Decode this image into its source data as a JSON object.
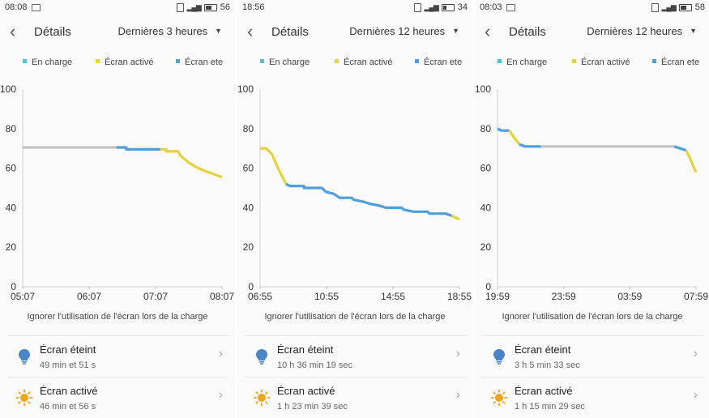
{
  "colors": {
    "charging": "#4cc4d6",
    "screen_on": "#e6d23e",
    "screen_off": "#4f9fdc",
    "plugged_line": "#c4c4c4",
    "bulb": "#4a86c5",
    "sun": "#f0a41f"
  },
  "icons": {
    "back": "chevron-left",
    "dropdown": "triangle-down",
    "screen_off": "lightbulb",
    "screen_on": "sun",
    "row_arrow": "chevron-right"
  },
  "panels": [
    {
      "status": {
        "time": "08:08",
        "battery": "56"
      },
      "header": {
        "title": "Détails",
        "range": "Dernières 3 heures"
      },
      "legend": [
        "En charge",
        "Écran activé",
        "Écran ete"
      ],
      "chart_data": {
        "type": "line",
        "ylim": [
          0,
          100
        ],
        "y_ticks": [
          "0",
          "20",
          "40",
          "60",
          "80",
          "100"
        ],
        "x_ticks": [
          "05:07",
          "06:07",
          "07:07",
          "08:07"
        ],
        "segments": [
          {
            "state": "charging",
            "points": [
              [
                0,
                70.5
              ],
              [
                0.47,
                70.5
              ]
            ]
          },
          {
            "state": "screen_off",
            "points": [
              [
                0.47,
                70.5
              ],
              [
                0.52,
                70.5
              ],
              [
                0.52,
                69.5
              ],
              [
                0.69,
                69.5
              ]
            ]
          },
          {
            "state": "screen_on",
            "points": [
              [
                0.69,
                69.5
              ],
              [
                0.72,
                69.5
              ],
              [
                0.72,
                68.5
              ],
              [
                0.78,
                68.5
              ],
              [
                0.79,
                66.5
              ],
              [
                0.83,
                63
              ],
              [
                0.88,
                60
              ],
              [
                0.93,
                58
              ],
              [
                1.0,
                55.5
              ]
            ]
          }
        ]
      },
      "ignore_text": "Ignorer l'utilisation de l'écran lors de la charge",
      "rows": [
        {
          "title": "Écran éteint",
          "value": "49 min et 51 s"
        },
        {
          "title": "Écran activé",
          "value": "46 min et 56 s"
        }
      ]
    },
    {
      "status": {
        "time": "18:56",
        "battery": "34"
      },
      "header": {
        "title": "Détails",
        "range": "Dernières 12 heures"
      },
      "legend": [
        "En charge",
        "Écran activé",
        "Écran ete"
      ],
      "chart_data": {
        "type": "line",
        "ylim": [
          0,
          100
        ],
        "y_ticks": [
          "0",
          "20",
          "40",
          "60",
          "80",
          "100"
        ],
        "x_ticks": [
          "06:55",
          "10:55",
          "14:55",
          "18:55"
        ],
        "segments": [
          {
            "state": "screen_on",
            "points": [
              [
                0,
                70
              ],
              [
                0.03,
                70
              ],
              [
                0.06,
                67
              ],
              [
                0.09,
                60
              ],
              [
                0.12,
                54
              ],
              [
                0.13,
                52
              ]
            ]
          },
          {
            "state": "screen_off",
            "points": [
              [
                0.13,
                52
              ],
              [
                0.15,
                51
              ],
              [
                0.22,
                51
              ],
              [
                0.22,
                50
              ],
              [
                0.31,
                50
              ],
              [
                0.33,
                48
              ],
              [
                0.37,
                47
              ],
              [
                0.4,
                45
              ],
              [
                0.46,
                45
              ],
              [
                0.47,
                44
              ],
              [
                0.52,
                43
              ],
              [
                0.55,
                42
              ],
              [
                0.6,
                41
              ],
              [
                0.63,
                40
              ],
              [
                0.71,
                40
              ],
              [
                0.72,
                39
              ],
              [
                0.77,
                38
              ],
              [
                0.84,
                38
              ],
              [
                0.85,
                37
              ],
              [
                0.93,
                37
              ],
              [
                0.96,
                36
              ]
            ]
          },
          {
            "state": "screen_on",
            "points": [
              [
                0.96,
                36
              ],
              [
                0.98,
                35
              ],
              [
                1.0,
                34
              ]
            ]
          }
        ]
      },
      "ignore_text": "Ignorer l'utilisation de l'écran lors de la charge",
      "rows": [
        {
          "title": "Écran éteint",
          "value": "10 h 36 min 19 sec"
        },
        {
          "title": "Écran activé",
          "value": "1 h 23 min 39 sec"
        }
      ]
    },
    {
      "status": {
        "time": "08:03",
        "battery": "58"
      },
      "header": {
        "title": "Détails",
        "range": "Dernières 12 heures"
      },
      "legend": [
        "En charge",
        "Écran activé",
        "Écran ete"
      ],
      "chart_data": {
        "type": "line",
        "ylim": [
          0,
          100
        ],
        "y_ticks": [
          "0",
          "20",
          "40",
          "60",
          "80",
          "100"
        ],
        "x_ticks": [
          "19:59",
          "23:59",
          "03:59",
          "07:59"
        ],
        "segments": [
          {
            "state": "screen_off",
            "points": [
              [
                0,
                80
              ],
              [
                0.02,
                79
              ],
              [
                0.06,
                79
              ]
            ]
          },
          {
            "state": "screen_on",
            "points": [
              [
                0.06,
                79
              ],
              [
                0.08,
                76
              ],
              [
                0.11,
                72
              ]
            ]
          },
          {
            "state": "screen_off",
            "points": [
              [
                0.11,
                72
              ],
              [
                0.14,
                71
              ],
              [
                0.22,
                71
              ]
            ]
          },
          {
            "state": "charging",
            "points": [
              [
                0.22,
                71
              ],
              [
                0.89,
                71
              ]
            ]
          },
          {
            "state": "screen_off",
            "points": [
              [
                0.89,
                71
              ],
              [
                0.92,
                70
              ],
              [
                0.95,
                69
              ]
            ]
          },
          {
            "state": "screen_on",
            "points": [
              [
                0.95,
                69
              ],
              [
                0.97,
                65
              ],
              [
                0.99,
                60
              ],
              [
                1.0,
                58
              ]
            ]
          }
        ]
      },
      "ignore_text": "Ignorer l'utilisation de l'écran lors de la charge",
      "rows": [
        {
          "title": "Écran éteint",
          "value": "3 h 5 min 33 sec"
        },
        {
          "title": "Écran activé",
          "value": "1 h 15 min 29 sec"
        }
      ]
    }
  ]
}
